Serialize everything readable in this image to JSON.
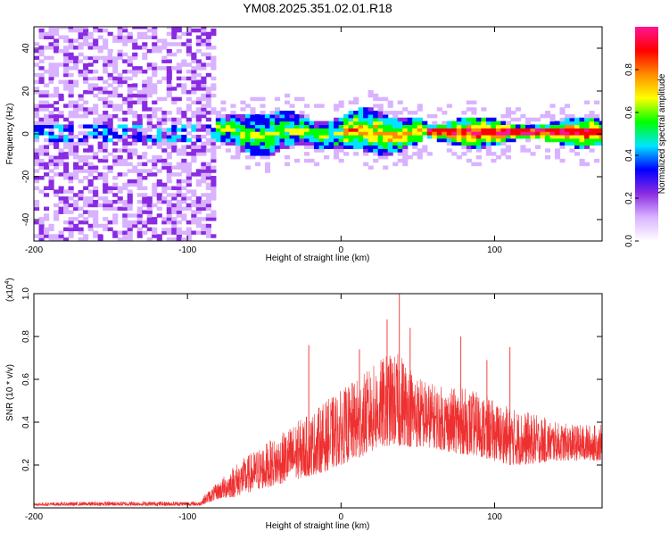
{
  "title": "YM08.2025.351.02.01.R18",
  "chart_data": [
    {
      "type": "heatmap",
      "name": "spectrogram",
      "xlabel": "Height of straight line (km)",
      "ylabel": "Frequency (Hz)",
      "xlim": [
        -200,
        170
      ],
      "ylim": [
        -50,
        50
      ],
      "xticks": [
        -200,
        -100,
        0,
        100
      ],
      "yticks": [
        -40,
        -20,
        0,
        20,
        40
      ],
      "noise_region_x": [
        -200,
        -82
      ],
      "signal_onset_x": -82,
      "steady_tone_start_x": 55,
      "colorbar": {
        "label": "Normalized spectral amplitude",
        "range": [
          0,
          1
        ],
        "ticks": [
          0.0,
          0.2,
          0.4,
          0.6,
          0.8
        ],
        "tick_labels": [
          "0.0",
          "0.2",
          "0.4",
          "0.6",
          "0.8"
        ],
        "colors": [
          "#ffffff",
          "#d9b3ff",
          "#8a2be2",
          "#0000ff",
          "#00e5ff",
          "#00ff00",
          "#ffff00",
          "#ff8c00",
          "#ff0000",
          "#ff1493"
        ]
      }
    },
    {
      "type": "line",
      "name": "snr",
      "xlabel": "Height of straight line (km)",
      "ylabel": "SNR (10 * v/v)",
      "scale_label": "(x10",
      "scale_exponent": "4",
      "xlim": [
        -200,
        170
      ],
      "ylim": [
        0,
        1.0
      ],
      "xticks": [
        -200,
        -100,
        0,
        100
      ],
      "yticks": [
        0.2,
        0.4,
        0.6,
        0.8,
        1.0
      ],
      "ytick_labels": [
        "0.2",
        "0.4",
        "0.6",
        "0.8",
        "1.0"
      ],
      "color": "#ee3030",
      "envelope": {
        "x": [
          -200,
          -150,
          -92,
          -88,
          -80,
          -70,
          -60,
          -50,
          -40,
          -30,
          -20,
          -10,
          0,
          10,
          20,
          30,
          40,
          50,
          60,
          70,
          80,
          90,
          100,
          110,
          120,
          130,
          140,
          150,
          160,
          170
        ],
        "base": [
          0.01,
          0.01,
          0.01,
          0.02,
          0.04,
          0.05,
          0.07,
          0.09,
          0.11,
          0.13,
          0.15,
          0.17,
          0.2,
          0.23,
          0.26,
          0.29,
          0.29,
          0.28,
          0.28,
          0.26,
          0.25,
          0.24,
          0.22,
          0.2,
          0.2,
          0.21,
          0.22,
          0.22,
          0.22,
          0.22
        ],
        "peak": [
          0.025,
          0.03,
          0.03,
          0.07,
          0.12,
          0.2,
          0.25,
          0.3,
          0.34,
          0.4,
          0.44,
          0.5,
          0.55,
          0.6,
          0.66,
          0.72,
          0.72,
          0.62,
          0.58,
          0.56,
          0.56,
          0.54,
          0.5,
          0.47,
          0.45,
          0.43,
          0.4,
          0.39,
          0.39,
          0.39
        ]
      },
      "spikes": [
        {
          "x": -21,
          "y": 0.76
        },
        {
          "x": 12,
          "y": 0.74
        },
        {
          "x": 30,
          "y": 0.88
        },
        {
          "x": 38,
          "y": 1.0
        },
        {
          "x": 45,
          "y": 0.84
        },
        {
          "x": 78,
          "y": 0.8
        },
        {
          "x": 110,
          "y": 0.75
        },
        {
          "x": 95,
          "y": 0.69
        }
      ]
    }
  ]
}
